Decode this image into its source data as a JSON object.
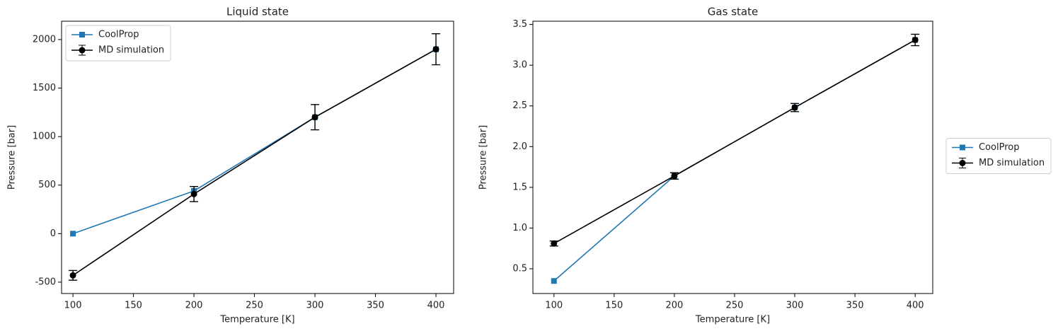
{
  "chart_data": [
    {
      "type": "line",
      "title": "Liquid state",
      "x_label": "Temperature  [K]",
      "y_label": "Pressure  [bar]",
      "x": [
        100,
        200,
        300,
        400
      ],
      "xlim": [
        90.6,
        414.6
      ],
      "xticks": [
        100,
        150,
        200,
        250,
        300,
        350,
        400
      ],
      "ylim": [
        -617,
        2189
      ],
      "yticks": [
        -500,
        0,
        500,
        1000,
        1500,
        2000
      ],
      "legend": "upper left",
      "series": [
        {
          "name": "CoolProp",
          "color": "#1f77b4",
          "marker": "square",
          "values": [
            0,
            440,
            1200,
            1900
          ]
        },
        {
          "name": "MD simulation",
          "color": "#000000",
          "marker": "circle",
          "values": [
            -430,
            408,
            1200,
            1900
          ],
          "errors": [
            50,
            78,
            130,
            160
          ]
        }
      ]
    },
    {
      "type": "line",
      "title": "Gas state",
      "x_label": "Temperature  [K]",
      "y_label": "Pressure  [bar]",
      "x": [
        100,
        200,
        300,
        400
      ],
      "xlim": [
        82.5,
        414.6
      ],
      "xticks": [
        100,
        150,
        200,
        250,
        300,
        350,
        400
      ],
      "ylim": [
        0.196,
        3.54
      ],
      "yticks": [
        0.5,
        {
          "value": 1,
          "label": "1.0"
        },
        1.5,
        {
          "value": 2,
          "label": "2.0"
        },
        2.5,
        {
          "value": 3,
          "label": "3.0"
        },
        3.5
      ],
      "legend": "outside right",
      "series": [
        {
          "name": "CoolProp",
          "color": "#1f77b4",
          "marker": "square",
          "values": [
            0.35,
            1.64,
            2.48,
            3.31
          ]
        },
        {
          "name": "MD simulation",
          "color": "#000000",
          "marker": "circle",
          "values": [
            0.81,
            1.64,
            2.48,
            3.31
          ],
          "errors": [
            0.03,
            0.04,
            0.05,
            0.07
          ]
        }
      ]
    }
  ]
}
